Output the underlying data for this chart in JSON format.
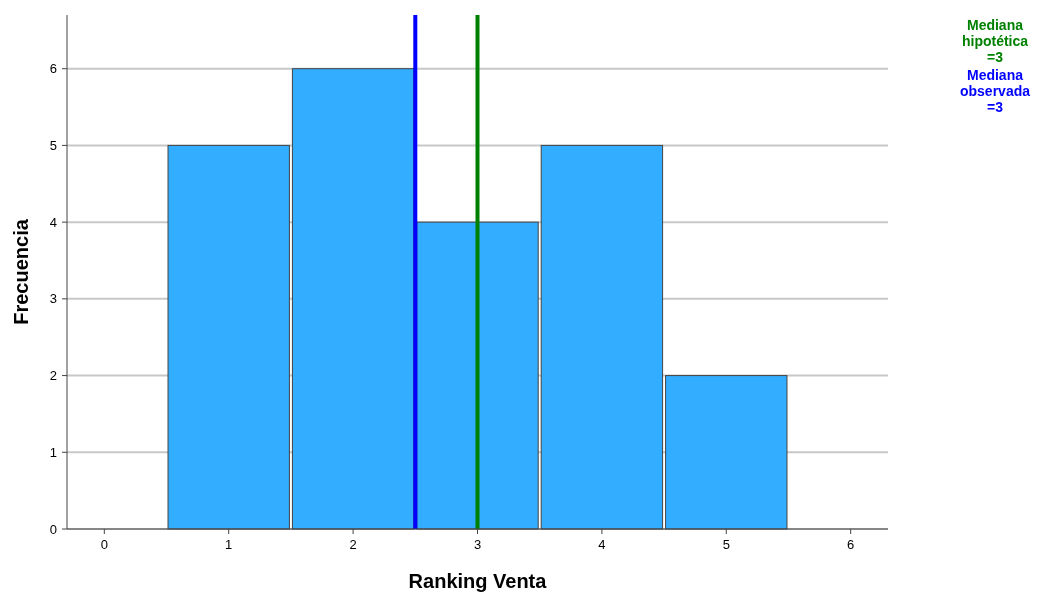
{
  "chart_data": {
    "type": "histogram",
    "xlabel": "Ranking Venta",
    "ylabel": "Frecuencia",
    "bins": [
      0.5,
      1.5,
      2.5,
      3.5,
      4.5,
      5.5
    ],
    "values": [
      5,
      6,
      4,
      5,
      2
    ],
    "color": "#33adff",
    "xlim": [
      -0.3,
      6.3
    ],
    "xticks": [
      0,
      1,
      2,
      3,
      4,
      5,
      6
    ],
    "ylim": [
      0,
      6.7
    ],
    "yticks": [
      0,
      1,
      2,
      3,
      4,
      5,
      6
    ],
    "grid": "y",
    "ref_lines": [
      {
        "axis": "x",
        "value": 3,
        "label": "Mediana hipotética =3",
        "color": "#008000"
      },
      {
        "axis": "x",
        "value": 2.5,
        "label": "Mediana observada =3",
        "color": "#0000ff"
      }
    ]
  }
}
